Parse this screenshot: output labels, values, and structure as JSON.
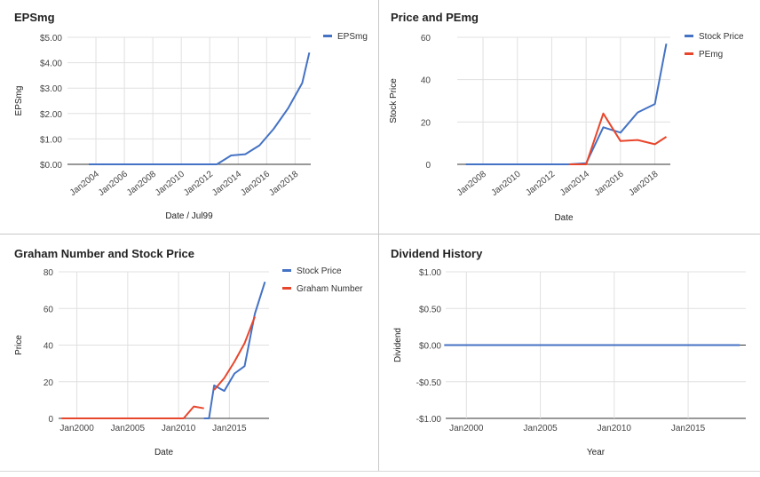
{
  "chart_data": [
    {
      "type": "line",
      "title": "EPSmg",
      "xlabel": "Date / Jul99",
      "ylabel": "EPSmg",
      "x": [
        "2003-07",
        "2004-07",
        "2005-07",
        "2006-07",
        "2007-07",
        "2008-07",
        "2009-07",
        "2010-07",
        "2011-07",
        "2012-07",
        "2013-07",
        "2014-07",
        "2015-07",
        "2016-07",
        "2017-07",
        "2018-07",
        "2019-01"
      ],
      "x_ticks": [
        "Jan2004",
        "Jan2006",
        "Jan2008",
        "Jan2010",
        "Jan2012",
        "Jan2014",
        "Jan2016",
        "Jan2018"
      ],
      "y_ticks": [
        "$0.00",
        "$1.00",
        "$2.00",
        "$3.00",
        "$4.00",
        "$5.00"
      ],
      "ylim": [
        0,
        5
      ],
      "grid": true,
      "legend_position": "top-right",
      "series": [
        {
          "name": "EPSmg",
          "color": "#4472c4",
          "values": [
            0,
            0,
            0,
            0,
            0,
            0,
            0,
            0,
            0,
            0,
            0.35,
            0.4,
            0.75,
            1.4,
            2.2,
            3.2,
            4.4
          ]
        }
      ]
    },
    {
      "type": "line",
      "title": "Price and PEmg",
      "xlabel": "Date",
      "ylabel": "Stock Price",
      "x": [
        "2007-01",
        "2008-01",
        "2009-01",
        "2010-01",
        "2011-01",
        "2012-01",
        "2013-01",
        "2014-01",
        "2015-01",
        "2016-01",
        "2017-01",
        "2018-01",
        "2018-09"
      ],
      "x_ticks": [
        "Jan2008",
        "Jan2010",
        "Jan2012",
        "Jan2014",
        "Jan2016",
        "Jan2018"
      ],
      "y_ticks": [
        "0",
        "20",
        "40",
        "60"
      ],
      "ylim": [
        0,
        60
      ],
      "grid": true,
      "legend_position": "top-right",
      "series": [
        {
          "name": "Stock Price",
          "color": "#4472c4",
          "values": [
            0,
            0,
            0,
            0,
            0,
            0,
            0,
            0.5,
            17.5,
            15,
            24.5,
            28.5,
            57
          ]
        },
        {
          "name": "PEmg",
          "color": "#e8462c",
          "values": [
            null,
            null,
            null,
            null,
            null,
            null,
            0,
            0,
            24,
            11,
            11.5,
            9.5,
            13
          ]
        }
      ]
    },
    {
      "type": "line",
      "title": "Graham Number and Stock Price",
      "xlabel": "Date",
      "ylabel": "Price",
      "x": [
        "1998-07",
        "1999-07",
        "2000-07",
        "2001-07",
        "2002-07",
        "2003-07",
        "2004-07",
        "2005-07",
        "2006-07",
        "2007-07",
        "2008-07",
        "2009-07",
        "2010-07",
        "2011-07",
        "2012-07",
        "2013-01",
        "2013-07",
        "2014-07",
        "2015-07",
        "2016-07",
        "2017-07",
        "2018-07"
      ],
      "x_ticks": [
        "Jan2000",
        "Jan2005",
        "Jan2010",
        "Jan2015"
      ],
      "y_ticks": [
        "0",
        "20",
        "40",
        "60",
        "80"
      ],
      "ylim": [
        0,
        80
      ],
      "grid": true,
      "legend_position": "top-right",
      "series": [
        {
          "name": "Stock Price",
          "color": "#4472c4",
          "values": [
            null,
            null,
            null,
            null,
            null,
            null,
            null,
            null,
            null,
            null,
            null,
            null,
            null,
            null,
            0,
            0,
            18,
            15,
            24.5,
            28.5,
            57,
            74.5
          ]
        },
        {
          "name": "Graham Number",
          "color": "#e8462c",
          "values": [
            0,
            0,
            0,
            0,
            0,
            0,
            0,
            0,
            0,
            0,
            0,
            0,
            0,
            6.5,
            5.5,
            null,
            15.5,
            22,
            31,
            41,
            55.5,
            null
          ]
        }
      ]
    },
    {
      "type": "line",
      "title": "Dividend History",
      "xlabel": "Year",
      "ylabel": "Dividend",
      "x": [
        "1998-07",
        "2018-07"
      ],
      "x_ticks": [
        "Jan2000",
        "Jan2005",
        "Jan2010",
        "Jan2015"
      ],
      "y_ticks": [
        "-$1.00",
        "-$0.50",
        "$0.00",
        "$0.50",
        "$1.00"
      ],
      "ylim": [
        -1,
        1
      ],
      "grid": true,
      "series": [
        {
          "color": "#4472c4",
          "values": [
            0,
            0
          ]
        }
      ]
    }
  ]
}
